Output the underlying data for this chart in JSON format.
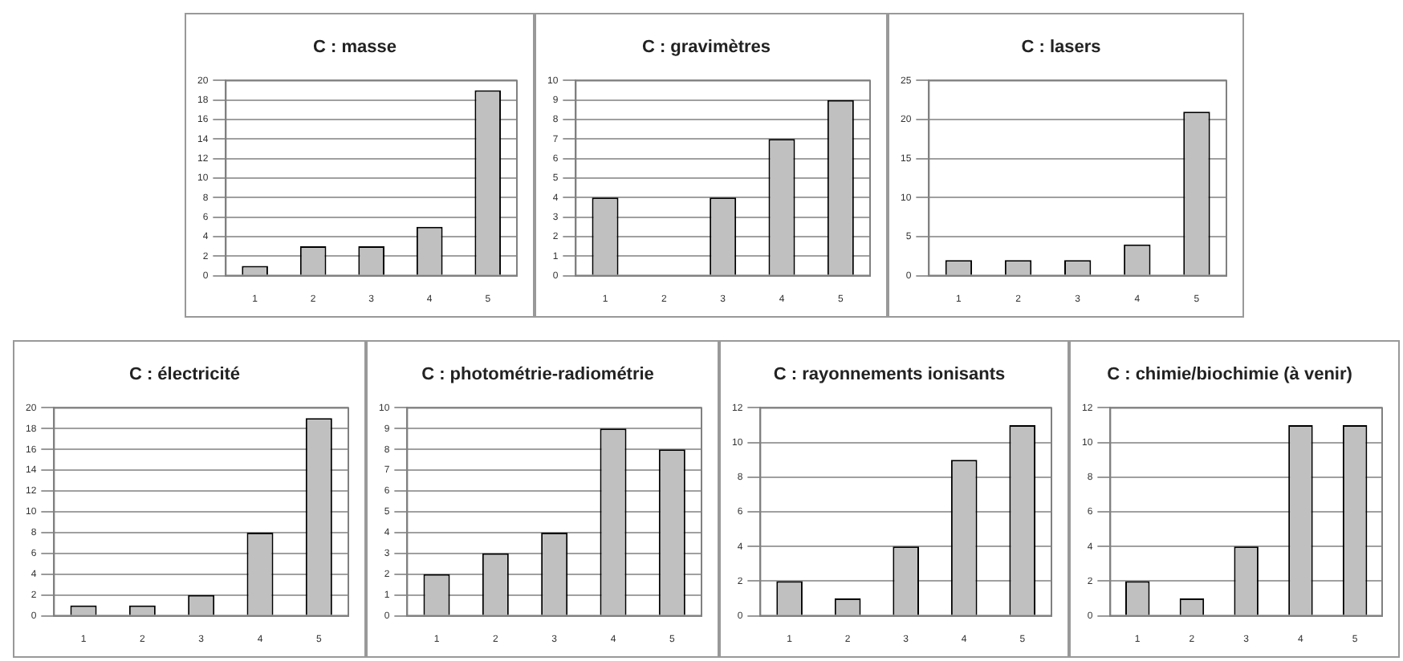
{
  "chart_data": [
    {
      "type": "bar",
      "title": "C : masse",
      "categories": [
        "1",
        "2",
        "3",
        "4",
        "5"
      ],
      "values": [
        1,
        3,
        3,
        5,
        19
      ],
      "color": "#c0c0c0",
      "ylim": [
        0,
        20
      ],
      "yticks": [
        0,
        2,
        4,
        6,
        8,
        10,
        12,
        14,
        16,
        18,
        20
      ],
      "grid": "y",
      "legend": false
    },
    {
      "type": "bar",
      "title": "C : gravimètres",
      "categories": [
        "1",
        "2",
        "3",
        "4",
        "5"
      ],
      "values": [
        4,
        0,
        4,
        7,
        9
      ],
      "color": "#c0c0c0",
      "ylim": [
        0,
        10
      ],
      "yticks": [
        0,
        1,
        2,
        3,
        4,
        5,
        6,
        7,
        8,
        9,
        10
      ],
      "grid": "y",
      "legend": false
    },
    {
      "type": "bar",
      "title": "C : lasers",
      "categories": [
        "1",
        "2",
        "3",
        "4",
        "5"
      ],
      "values": [
        2,
        2,
        2,
        4,
        21
      ],
      "color": "#c0c0c0",
      "ylim": [
        0,
        25
      ],
      "yticks": [
        0,
        5,
        10,
        15,
        20,
        25
      ],
      "grid": "y",
      "legend": false
    },
    {
      "type": "bar",
      "title": "C : électricité",
      "categories": [
        "1",
        "2",
        "3",
        "4",
        "5"
      ],
      "values": [
        1,
        1,
        2,
        8,
        19
      ],
      "color": "#c0c0c0",
      "ylim": [
        0,
        20
      ],
      "yticks": [
        0,
        2,
        4,
        6,
        8,
        10,
        12,
        14,
        16,
        18,
        20
      ],
      "grid": "y",
      "legend": false
    },
    {
      "type": "bar",
      "title": "C : photométrie-radiométrie",
      "categories": [
        "1",
        "2",
        "3",
        "4",
        "5"
      ],
      "values": [
        2,
        3,
        4,
        9,
        8
      ],
      "color": "#c0c0c0",
      "ylim": [
        0,
        10
      ],
      "yticks": [
        0,
        1,
        2,
        3,
        4,
        5,
        6,
        7,
        8,
        9,
        10
      ],
      "grid": "y",
      "legend": false
    },
    {
      "type": "bar",
      "title": "C : rayonnements ionisants",
      "categories": [
        "1",
        "2",
        "3",
        "4",
        "5"
      ],
      "values": [
        2,
        1,
        4,
        9,
        11
      ],
      "color": "#c0c0c0",
      "ylim": [
        0,
        12
      ],
      "yticks": [
        0,
        2,
        4,
        6,
        8,
        10,
        12
      ],
      "grid": "y",
      "legend": false
    },
    {
      "type": "bar",
      "title": "C : chimie/biochimie (à venir)",
      "categories": [
        "1",
        "2",
        "3",
        "4",
        "5"
      ],
      "values": [
        2,
        1,
        4,
        11,
        11
      ],
      "color": "#c0c0c0",
      "ylim": [
        0,
        12
      ],
      "yticks": [
        0,
        2,
        4,
        6,
        8,
        10,
        12
      ],
      "grid": "y",
      "legend": false
    }
  ]
}
